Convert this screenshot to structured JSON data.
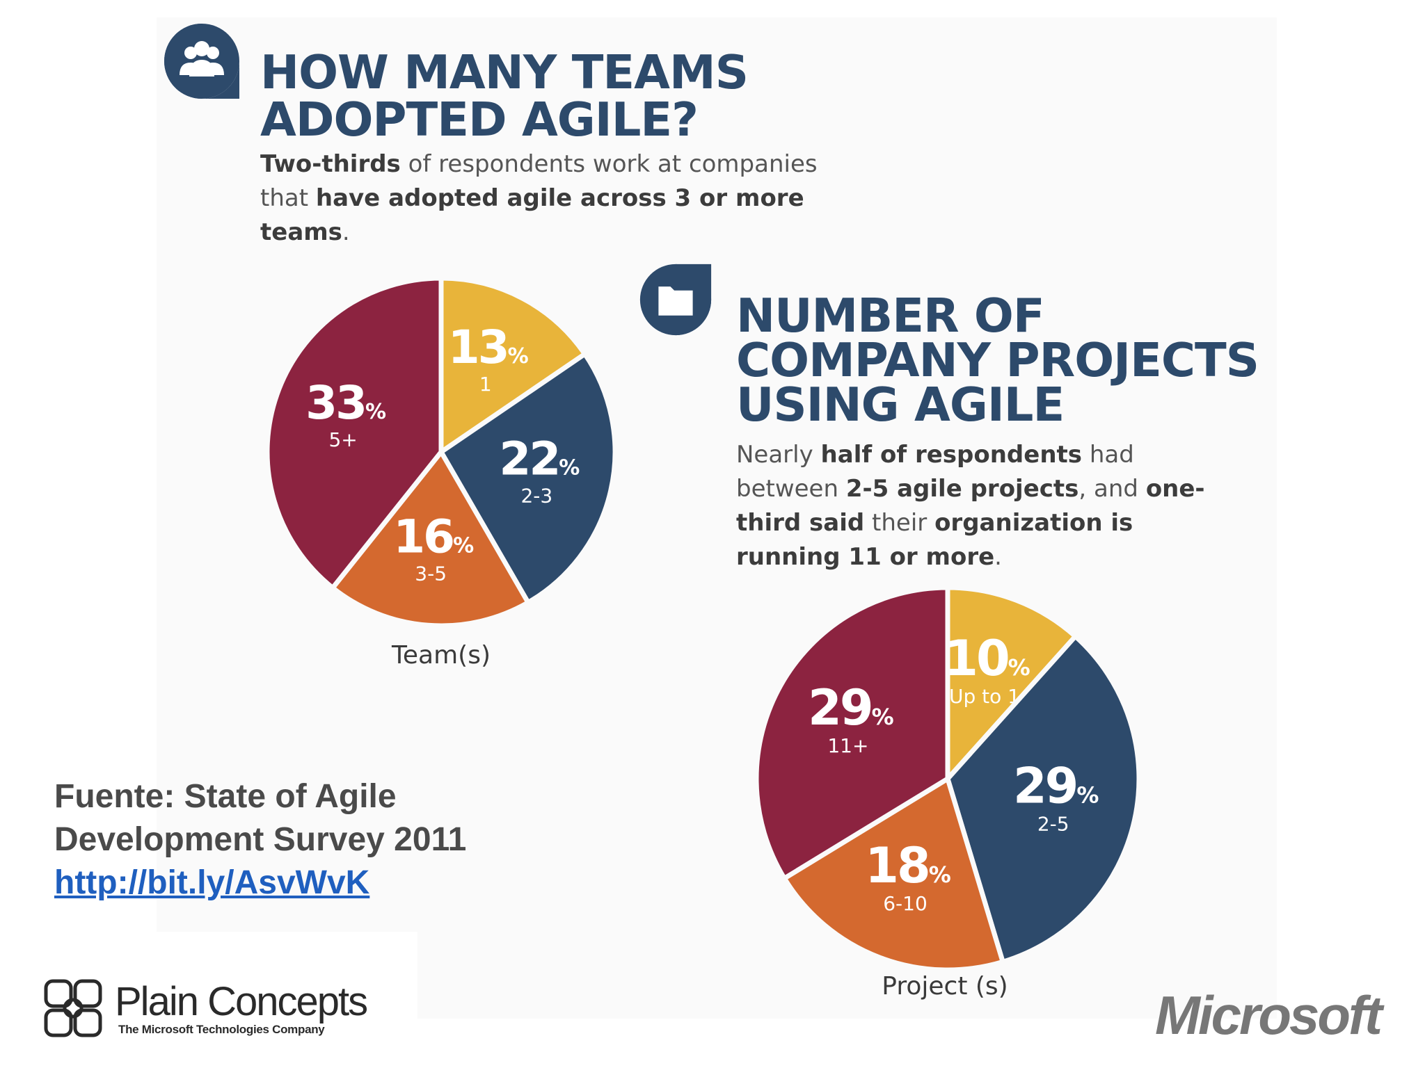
{
  "colors": {
    "gold": "#e8b43a",
    "navy": "#2d4a6b",
    "orange": "#d4692f",
    "maroon": "#8c2340",
    "link": "#1f5fbf"
  },
  "section1": {
    "icon": "team-icon",
    "title_line1": "HOW MANY TEAMS",
    "title_line2": "ADOPTED AGILE?",
    "desc": {
      "p1_bold": "Two-thirds",
      "p2": " of respondents work at companies that ",
      "p3_bold": "have adopted agile across 3 or more teams",
      "p4": "."
    }
  },
  "section2": {
    "icon": "folder-icon",
    "title_line1": "NUMBER OF",
    "title_line2": "COMPANY PROJECTS",
    "title_line3": "USING AGILE",
    "desc": {
      "p1": "Nearly ",
      "p2_bold": "half of respondents",
      "p3": " had between ",
      "p4_bold": "2-5 agile projects",
      "p5": ", and ",
      "p6_bold": "one-third said",
      "p7": " their ",
      "p8_bold": "organization is running 11 or more",
      "p9": "."
    }
  },
  "chart_data": [
    {
      "type": "pie",
      "title": "HOW MANY TEAMS ADOPTED AGILE?",
      "xlabel": "Team(s)",
      "categories": [
        "1",
        "2-3",
        "3-5",
        "5+"
      ],
      "values": [
        13,
        22,
        16,
        33
      ],
      "value_labels": [
        "13",
        "22",
        "16",
        "33"
      ],
      "unit": "%",
      "colors": [
        "#e8b43a",
        "#2d4a6b",
        "#d4692f",
        "#8c2340"
      ]
    },
    {
      "type": "pie",
      "title": "NUMBER OF COMPANY PROJECTS USING AGILE",
      "xlabel": "Project (s)",
      "categories": [
        "Up to 1",
        "2-5",
        "6-10",
        "11+"
      ],
      "values": [
        10,
        29,
        18,
        29
      ],
      "value_labels": [
        "10",
        "29",
        "18",
        "29"
      ],
      "unit": "%",
      "colors": [
        "#e8b43a",
        "#2d4a6b",
        "#d4692f",
        "#8c2340"
      ]
    }
  ],
  "source": {
    "line1": "Fuente: State of Agile",
    "line2": "Development Survey 2011",
    "link": "http://bit.ly/AsvWvK"
  },
  "footer": {
    "plain_concepts_name": "Plain Concepts",
    "plain_concepts_tagline": "The Microsoft Technologies Company",
    "microsoft_logo": "Microsoft"
  }
}
